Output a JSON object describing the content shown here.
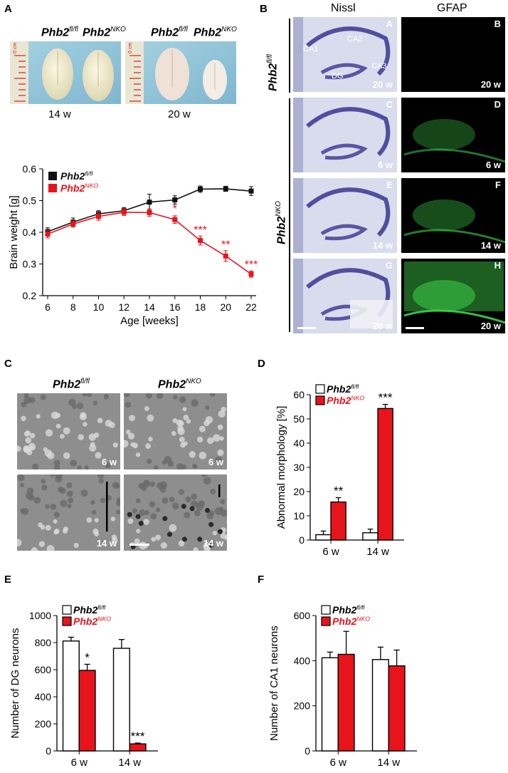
{
  "panels": {
    "A": {
      "label": "A",
      "photo_captions": {
        "g1_ctrl_base": "Phb2",
        "g1_ctrl_sup": "fl/fl",
        "g1_ko_base": "Phb2",
        "g1_ko_sup": "NKO",
        "g2_ctrl_base": "Phb2",
        "g2_ctrl_sup": "fl/fl",
        "g2_ko_base": "Phb2",
        "g2_ko_sup": "NKO",
        "age1": "14 w",
        "age2": "20 w",
        "ruler1": "0 cm",
        "ruler2": "0 cm"
      }
    },
    "B": {
      "label": "B",
      "col_nissl": "Nissl",
      "col_gfap": "GFAP",
      "row_ctrl_base": "Phb2",
      "row_ctrl_sup": "fl/fl",
      "row_ko_base": "Phb2",
      "row_ko_sup": "NKO",
      "tiles": [
        {
          "letter": "A",
          "age": "20 w"
        },
        {
          "letter": "B",
          "age": "20 w"
        },
        {
          "letter": "C",
          "age": "6 w"
        },
        {
          "letter": "D",
          "age": "6 w"
        },
        {
          "letter": "E",
          "age": "14 w"
        },
        {
          "letter": "F",
          "age": "14 w"
        },
        {
          "letter": "G",
          "age": "20 w"
        },
        {
          "letter": "H",
          "age": "20 w"
        }
      ],
      "regions": {
        "ca1": "CA1",
        "ca2": "CA2",
        "ca3": "CA3",
        "dg": "DG"
      }
    },
    "C": {
      "label": "C",
      "col_ctrl_base": "Phb2",
      "col_ctrl_sup": "fl/fl",
      "col_ko_base": "Phb2",
      "col_ko_sup": "NKO",
      "tiles": [
        {
          "age": "6 w"
        },
        {
          "age": "6 w"
        },
        {
          "age": "14 w"
        },
        {
          "age": "14 w"
        }
      ]
    },
    "D": {
      "label": "D"
    },
    "E": {
      "label": "E"
    },
    "F": {
      "label": "F"
    }
  },
  "colors": {
    "control": "#111111",
    "nko": "#e8141c",
    "nissl_bg": "#d9dcec",
    "nissl_dark": "#3a3590",
    "gfap": "#3fd24a"
  },
  "chart_data": [
    {
      "id": "A-line",
      "type": "line",
      "xlabel": "Age [weeks]",
      "ylabel": "Brain weight [g]",
      "xlim": [
        6,
        22
      ],
      "ylim": [
        0.2,
        0.6
      ],
      "xticks": [
        "6",
        "8",
        "10",
        "12",
        "14",
        "16",
        "18",
        "20",
        "22"
      ],
      "yticks": [
        "0.2",
        "0.3",
        "0.4",
        "0.5",
        "0.6"
      ],
      "legend_position": "top-left",
      "x": [
        6,
        8,
        10,
        12,
        14,
        16,
        18,
        20,
        22
      ],
      "series": [
        {
          "legend_base": "Phb2",
          "legend_sup": "fl/fl",
          "color": "#111111",
          "values": [
            0.402,
            0.432,
            0.458,
            0.468,
            0.495,
            0.502,
            0.536,
            0.537,
            0.53
          ],
          "errors": [
            0.012,
            0.013,
            0.01,
            0.01,
            0.025,
            0.013,
            0.01,
            0.008,
            0.014
          ]
        },
        {
          "legend_base": "Phb2",
          "legend_sup": "NKO",
          "color": "#e8141c",
          "values": [
            0.394,
            0.426,
            0.45,
            0.463,
            0.462,
            0.44,
            0.374,
            0.325,
            0.268
          ],
          "errors": [
            0.012,
            0.01,
            0.012,
            0.01,
            0.012,
            0.012,
            0.014,
            0.017,
            0.01
          ]
        }
      ],
      "annotations": [
        {
          "x": 16,
          "y": 0.463,
          "text": "*"
        },
        {
          "x": 18,
          "y": 0.395,
          "text": "***"
        },
        {
          "x": 20,
          "y": 0.35,
          "text": "**"
        },
        {
          "x": 22,
          "y": 0.287,
          "text": "***"
        }
      ]
    },
    {
      "id": "D-bar",
      "type": "bar",
      "ylabel": "Abnormal morphology [%]",
      "categories": [
        "6 w",
        "14 w"
      ],
      "ylim": [
        0,
        60
      ],
      "yticks": [
        "0",
        "10",
        "20",
        "30",
        "40",
        "50",
        "60"
      ],
      "legend_position": "top-left",
      "series": [
        {
          "legend_base": "Phb2",
          "legend_sup": "fl/fl",
          "color": "#ffffff",
          "values": [
            2.2,
            3.0
          ],
          "errors": [
            1.5,
            1.5
          ]
        },
        {
          "legend_base": "Phb2",
          "legend_sup": "NKO",
          "color": "#e8141c",
          "values": [
            15.7,
            54.3
          ],
          "errors": [
            1.8,
            1.7
          ]
        }
      ],
      "annotations": [
        {
          "category": 0,
          "series": 1,
          "text": "**"
        },
        {
          "category": 1,
          "series": 1,
          "text": "***"
        }
      ]
    },
    {
      "id": "E-bar",
      "type": "bar",
      "ylabel": "Number of DG neurons",
      "categories": [
        "6 w",
        "14 w"
      ],
      "ylim": [
        0,
        1000
      ],
      "yticks": [
        "0",
        "200",
        "400",
        "600",
        "800",
        "1000"
      ],
      "legend_position": "top-left",
      "series": [
        {
          "legend_base": "Phb2",
          "legend_sup": "fl/fl",
          "color": "#ffffff",
          "values": [
            812,
            758
          ],
          "errors": [
            28,
            65
          ]
        },
        {
          "legend_base": "Phb2",
          "legend_sup": "NKO",
          "color": "#e8141c",
          "values": [
            595,
            52
          ],
          "errors": [
            45,
            6
          ]
        }
      ],
      "annotations": [
        {
          "category": 0,
          "series": 1,
          "text": "*"
        },
        {
          "category": 1,
          "series": 1,
          "text": "***"
        }
      ]
    },
    {
      "id": "F-bar",
      "type": "bar",
      "ylabel": "Number of CA1 neurons",
      "categories": [
        "6 w",
        "14 w"
      ],
      "ylim": [
        0,
        600
      ],
      "yticks": [
        "0",
        "200",
        "400",
        "600"
      ],
      "legend_position": "top-left",
      "series": [
        {
          "legend_base": "Phb2",
          "legend_sup": "fl/fl",
          "color": "#ffffff",
          "values": [
            413,
            405
          ],
          "errors": [
            25,
            55
          ]
        },
        {
          "legend_base": "Phb2",
          "legend_sup": "NKO",
          "color": "#e8141c",
          "values": [
            428,
            377
          ],
          "errors": [
            102,
            70
          ]
        }
      ],
      "annotations": []
    }
  ]
}
